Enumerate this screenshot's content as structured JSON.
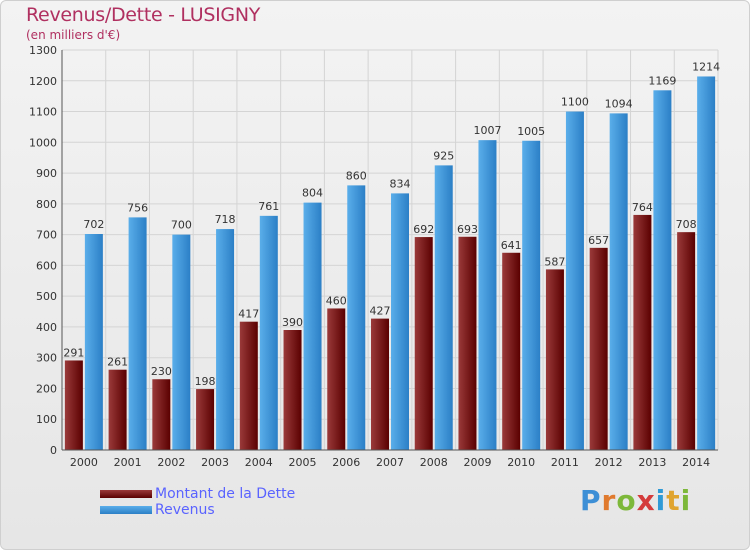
{
  "header": {
    "title": "Revenus/Dette - LUSIGNY",
    "subtitle": "(en milliers d'€)"
  },
  "legend": {
    "items": [
      {
        "label": "Montant de la Dette",
        "color": "#7a1a1a"
      },
      {
        "label": "Revenus",
        "color": "#3a98e0"
      }
    ]
  },
  "logo": {
    "text": "Proxiti"
  },
  "colors": {
    "debt_dark": "#5a0000",
    "debt_light": "#9a3a3a",
    "rev_dark": "#2b7fc6",
    "rev_light": "#5aaeea",
    "grid": "#d4d4d4",
    "axis_text": "#333333"
  },
  "chart_data": {
    "type": "bar",
    "title": "Revenus/Dette - LUSIGNY",
    "subtitle": "(en milliers d'€)",
    "xlabel": "",
    "ylabel": "",
    "ylim": [
      0,
      1300
    ],
    "yticks": [
      0,
      100,
      200,
      300,
      400,
      500,
      600,
      700,
      800,
      900,
      1000,
      1100,
      1200,
      1300
    ],
    "grid": true,
    "legend_position": "bottom-left",
    "categories": [
      "2000",
      "2001",
      "2002",
      "2003",
      "2004",
      "2005",
      "2006",
      "2007",
      "2008",
      "2009",
      "2010",
      "2011",
      "2012",
      "2013",
      "2014"
    ],
    "series": [
      {
        "name": "Montant de la Dette",
        "values": [
          291,
          261,
          230,
          198,
          417,
          390,
          460,
          427,
          692,
          693,
          641,
          587,
          657,
          764,
          708
        ]
      },
      {
        "name": "Revenus",
        "values": [
          702,
          756,
          700,
          718,
          761,
          804,
          860,
          834,
          925,
          1007,
          1005,
          1100,
          1094,
          1169,
          1214
        ]
      }
    ]
  }
}
